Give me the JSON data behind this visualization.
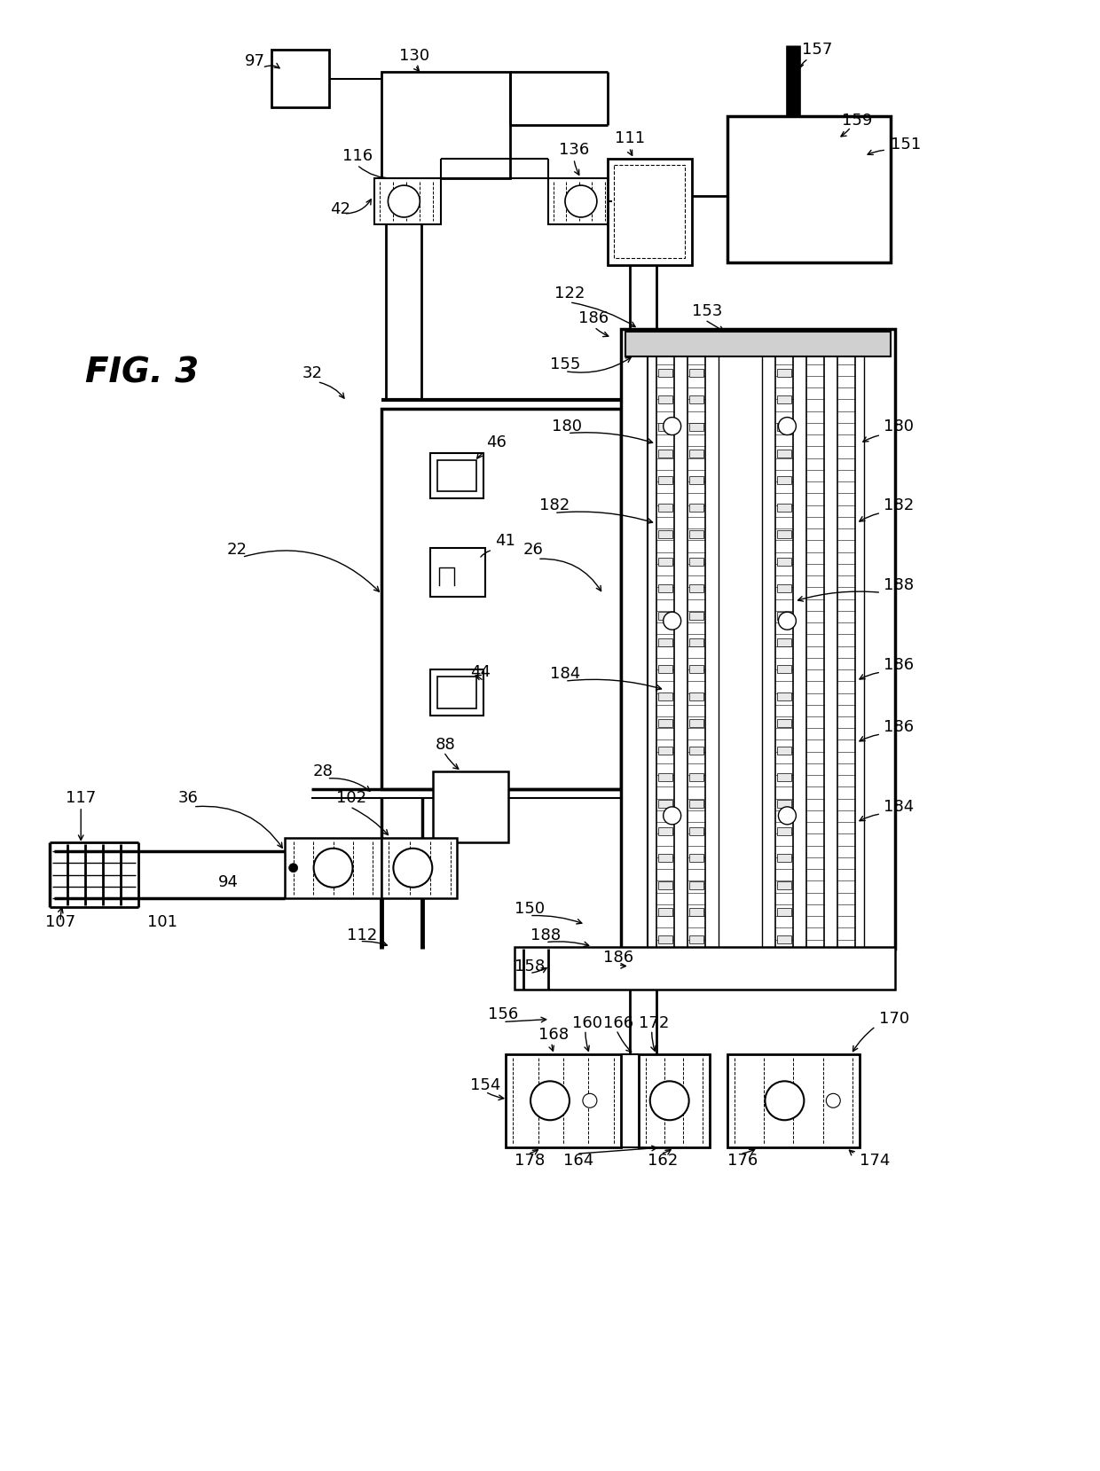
{
  "bg_color": "#ffffff",
  "fig_width": 12.4,
  "fig_height": 16.59,
  "dpi": 100
}
